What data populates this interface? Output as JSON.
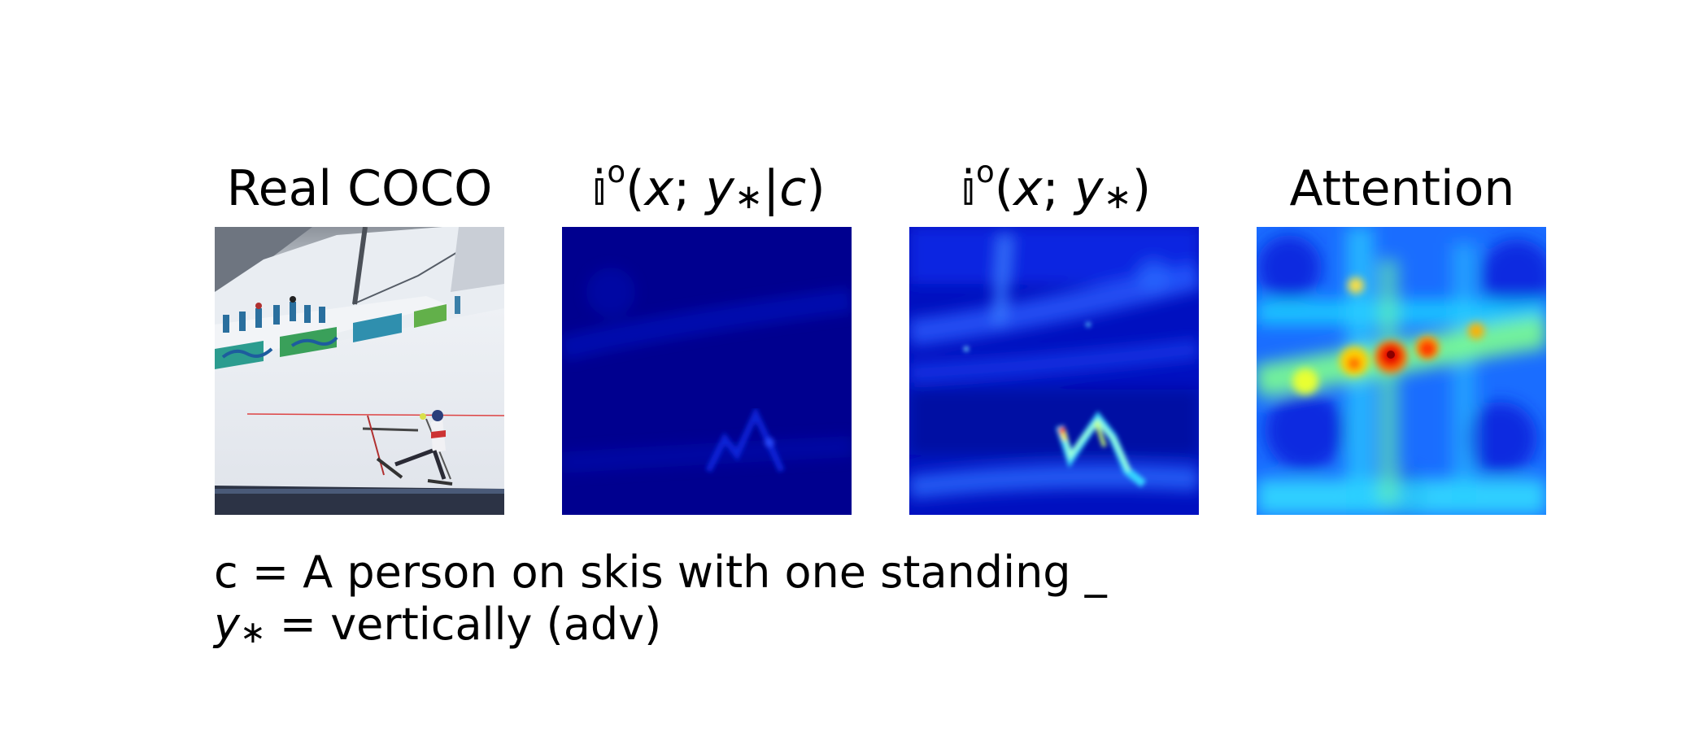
{
  "figure": {
    "panels": [
      {
        "id": "real",
        "title": "Real COCO"
      },
      {
        "id": "cond",
        "title_parts": {
          "sym": "𝕚",
          "sup": "o",
          "open": "(",
          "x": "x",
          "semi": "; ",
          "y": "y",
          "star": "∗",
          "bar": "|",
          "c": "c",
          "close": ")"
        }
      },
      {
        "id": "uncond",
        "title_parts": {
          "sym": "𝕚",
          "sup": "o",
          "open": "(",
          "x": "x",
          "semi": "; ",
          "y": "y",
          "star": "∗",
          "close": ")"
        }
      },
      {
        "id": "attn",
        "title": "Attention"
      }
    ],
    "caption": {
      "line1_var": "c",
      "line1_text": " = A person on skis with one standing _",
      "line2_var": "y",
      "line2_sub": "∗",
      "line2_text": " = vertically (adv)"
    },
    "colors": {
      "heatmap_low": "#00008f",
      "heatmap_mid": "#00ffff",
      "heatmap_high": "#ff0000"
    }
  }
}
